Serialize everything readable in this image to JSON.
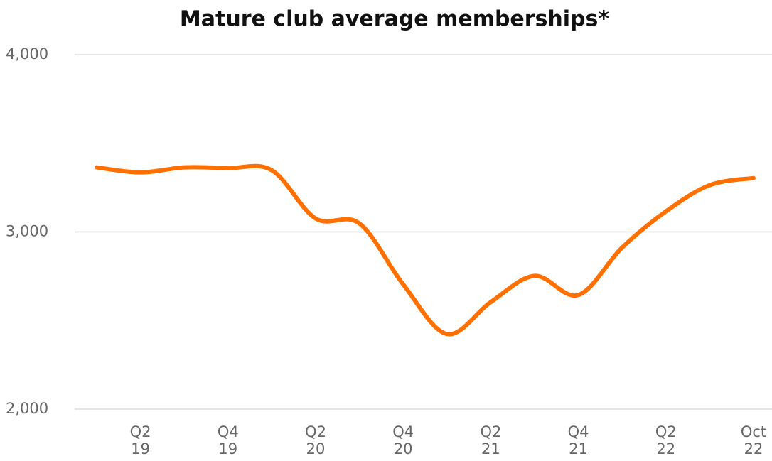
{
  "chart_data": {
    "type": "line",
    "title": "Mature club average memberships*",
    "categories": [
      null,
      "Q2 19",
      null,
      "Q4 19",
      null,
      "Q2 20",
      null,
      "Q4 20",
      null,
      "Q2 21",
      null,
      "Q4 21",
      null,
      "Q2 22",
      null,
      "Oct 22"
    ],
    "series": [
      {
        "name": "Average memberships",
        "color": "#ff7000",
        "values": [
          3364,
          3336,
          3364,
          3360,
          3348,
          3076,
          3048,
          2704,
          2424,
          2604,
          2752,
          2644,
          2912,
          3116,
          3264,
          3304
        ]
      }
    ],
    "ylim": [
      2000,
      4000
    ],
    "yticks": [
      {
        "value": 2000,
        "label": "2,000"
      },
      {
        "value": 3000,
        "label": "3,000"
      },
      {
        "value": 4000,
        "label": "4,000"
      }
    ],
    "grid": true,
    "legend": false
  }
}
